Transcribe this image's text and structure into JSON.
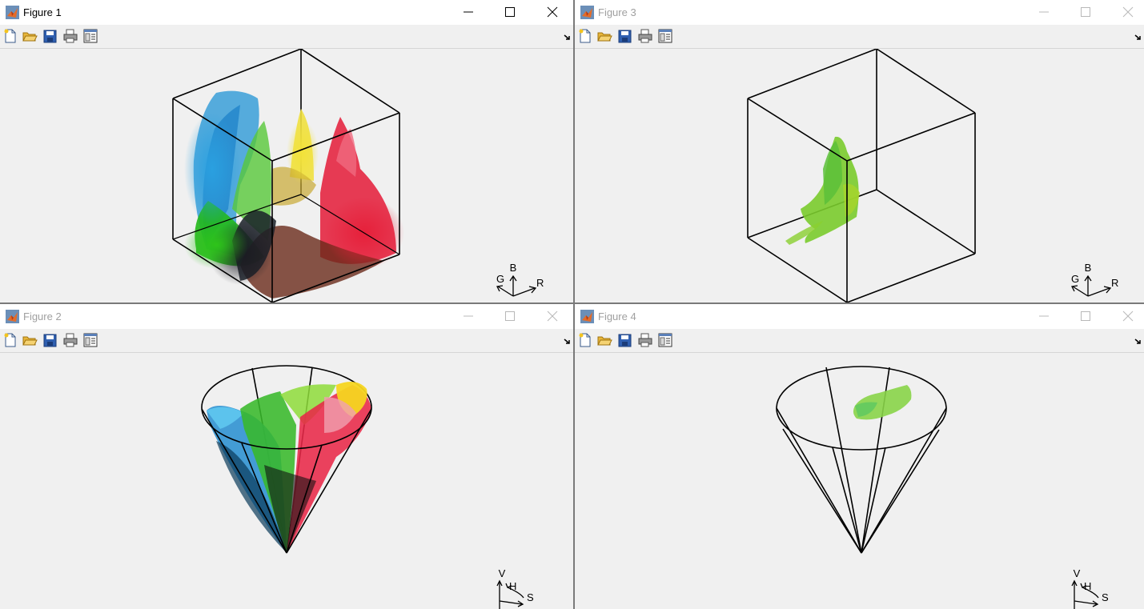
{
  "figures": [
    {
      "title": "Figure 1",
      "active": true,
      "triad": {
        "up": "B",
        "left": "G",
        "right": "R"
      }
    },
    {
      "title": "Figure 3",
      "active": false,
      "triad": {
        "up": "B",
        "left": "G",
        "right": "R"
      }
    },
    {
      "title": "Figure 2",
      "active": false,
      "triad": {
        "up": "V",
        "mid": "H",
        "right": "S"
      }
    },
    {
      "title": "Figure 4",
      "active": false,
      "triad": {
        "up": "V",
        "mid": "H",
        "right": "S"
      }
    }
  ],
  "toolbar_icons": [
    "new-figure-icon",
    "open-file-icon",
    "save-icon",
    "print-icon",
    "property-editor-icon"
  ],
  "window_controls": [
    "minimize-icon",
    "maximize-icon",
    "close-icon"
  ],
  "colors": {
    "title_active": "#000000",
    "title_inactive": "#a0a0a0",
    "axes_bg": "#f0f0f0",
    "titlebar_bg": "#ffffff"
  }
}
